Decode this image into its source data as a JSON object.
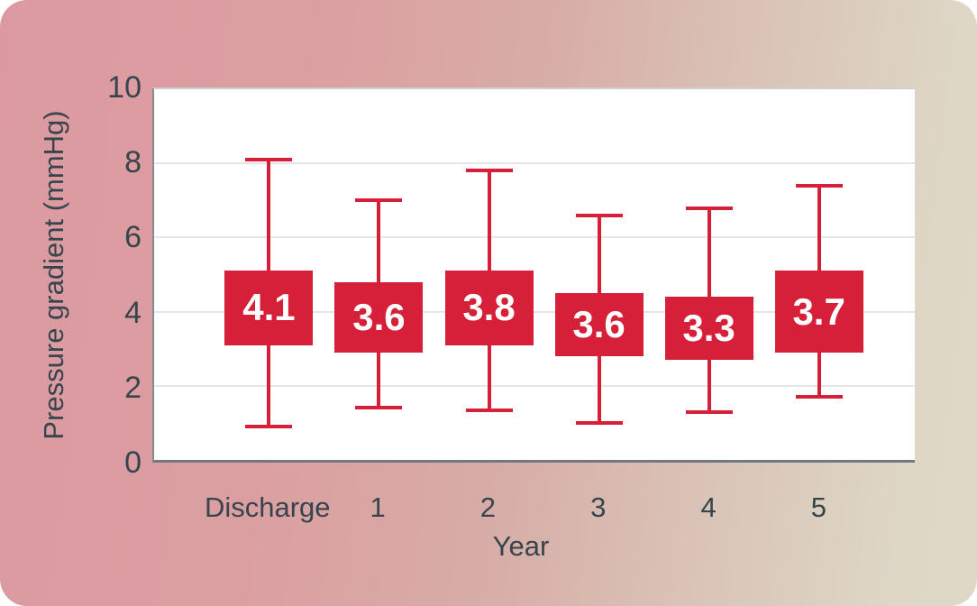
{
  "chart_data": {
    "type": "bar",
    "subtype": "mean-with-error-bars",
    "title": "",
    "xlabel": "Year",
    "ylabel": "Pressure gradient (mmHg)",
    "categories": [
      "Discharge",
      "1",
      "2",
      "3",
      "4",
      "5"
    ],
    "ylim": [
      0,
      10
    ],
    "yticks": [
      0,
      2,
      4,
      6,
      8,
      10
    ],
    "grid": true,
    "series": [
      {
        "category": "Discharge",
        "mean_label": "4.1",
        "box_low": 3.1,
        "box_high": 5.1,
        "whisker_low": 0.9,
        "whisker_high": 8.1
      },
      {
        "category": "1",
        "mean_label": "3.6",
        "box_low": 2.9,
        "box_high": 4.8,
        "whisker_low": 1.4,
        "whisker_high": 7.0
      },
      {
        "category": "2",
        "mean_label": "3.8",
        "box_low": 3.1,
        "box_high": 5.1,
        "whisker_low": 1.35,
        "whisker_high": 7.8
      },
      {
        "category": "3",
        "mean_label": "3.6",
        "box_low": 2.8,
        "box_high": 4.5,
        "whisker_low": 1.0,
        "whisker_high": 6.6
      },
      {
        "category": "4",
        "mean_label": "3.3",
        "box_low": 2.7,
        "box_high": 4.4,
        "whisker_low": 1.3,
        "whisker_high": 6.8
      },
      {
        "category": "5",
        "mean_label": "3.7",
        "box_low": 2.9,
        "box_high": 5.1,
        "whisker_low": 1.7,
        "whisker_high": 7.4
      }
    ],
    "colors": {
      "box": "#d6203a",
      "error_bar": "#d6203a",
      "box_text": "#ffffff",
      "axis_text": "#36454d",
      "gridline": "#e6e6e6",
      "plot_bg": "#ffffff",
      "bg_left": "#dc99a1",
      "bg_right": "#ded8c6"
    }
  }
}
